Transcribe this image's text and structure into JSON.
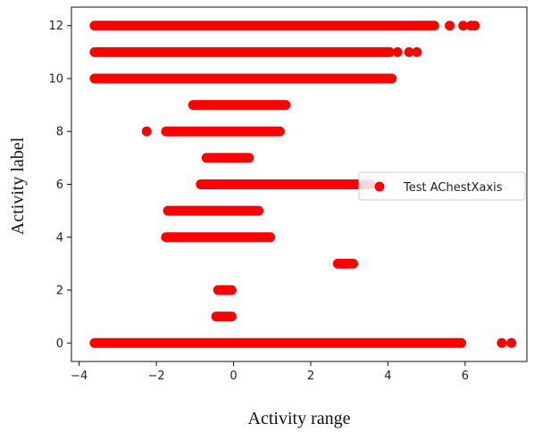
{
  "chart_data": {
    "type": "scatter",
    "title": "",
    "xlabel": "Activity range",
    "ylabel": "Activity label",
    "xlim": [
      -4.2,
      7.6
    ],
    "ylim": [
      -0.7,
      12.7
    ],
    "xticks": [
      -4,
      -2,
      0,
      2,
      4,
      6
    ],
    "yticks": [
      0,
      2,
      4,
      6,
      8,
      10,
      12
    ],
    "xtick_labels": [
      "−4",
      "−2",
      "0",
      "2",
      "4",
      "6"
    ],
    "ytick_labels": [
      "0",
      "2",
      "4",
      "6",
      "8",
      "10",
      "12"
    ],
    "grid": false,
    "legend_position": "center-right",
    "series": [
      {
        "name": "Test AChestXaxis",
        "color": "#ff0000",
        "ranges": [
          {
            "label": 0,
            "segments": [
              [
                -3.6,
                5.9
              ]
            ],
            "extra": [
              6.95,
              7.2
            ]
          },
          {
            "label": 1,
            "segments": [
              [
                -0.45,
                -0.05
              ]
            ],
            "extra": []
          },
          {
            "label": 2,
            "segments": [
              [
                -0.4,
                -0.05
              ]
            ],
            "extra": []
          },
          {
            "label": 3,
            "segments": [
              [
                2.7,
                3.1
              ]
            ],
            "extra": []
          },
          {
            "label": 4,
            "segments": [
              [
                -1.75,
                0.95
              ]
            ],
            "extra": []
          },
          {
            "label": 5,
            "segments": [
              [
                -1.7,
                0.65
              ]
            ],
            "extra": []
          },
          {
            "label": 6,
            "segments": [
              [
                -0.85,
                3.55
              ]
            ],
            "extra": []
          },
          {
            "label": 7,
            "segments": [
              [
                -0.7,
                0.4
              ]
            ],
            "extra": []
          },
          {
            "label": 8,
            "segments": [
              [
                -1.75,
                1.2
              ]
            ],
            "extra": [
              -2.25
            ]
          },
          {
            "label": 9,
            "segments": [
              [
                -1.05,
                1.35
              ]
            ],
            "extra": []
          },
          {
            "label": 10,
            "segments": [
              [
                -3.6,
                4.1
              ]
            ],
            "extra": []
          },
          {
            "label": 11,
            "segments": [
              [
                -3.6,
                4.05
              ]
            ],
            "extra": [
              4.25,
              4.55,
              4.75
            ]
          },
          {
            "label": 12,
            "segments": [
              [
                -3.6,
                5.2
              ]
            ],
            "extra": [
              5.6,
              5.95,
              6.15,
              6.25
            ]
          }
        ]
      }
    ]
  }
}
